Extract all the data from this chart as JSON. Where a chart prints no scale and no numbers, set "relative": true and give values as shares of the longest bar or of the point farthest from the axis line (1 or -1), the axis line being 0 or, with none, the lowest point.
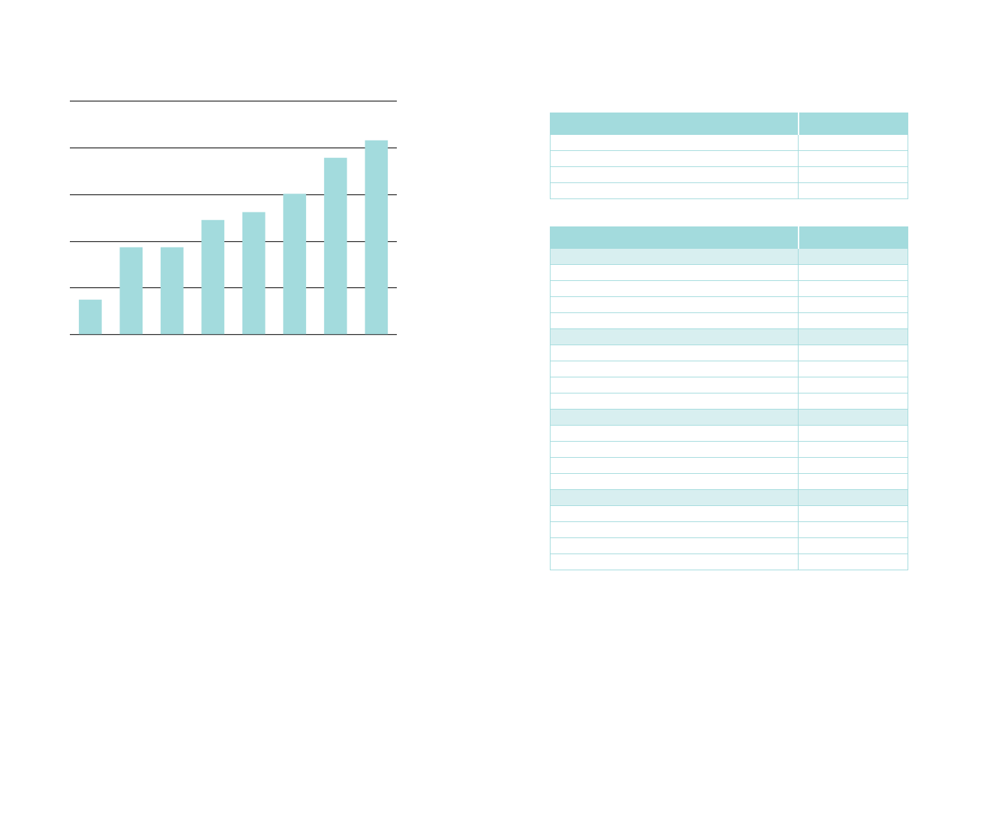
{
  "chart_data": {
    "type": "bar",
    "relative": true,
    "categories": [
      null,
      null,
      null,
      null,
      null,
      null,
      null,
      null
    ],
    "values": [
      0.18,
      0.45,
      0.45,
      0.59,
      0.63,
      0.725,
      0.91,
      1
    ],
    "color": "#a3dbdd",
    "grid": "y",
    "legend": false
  }
}
